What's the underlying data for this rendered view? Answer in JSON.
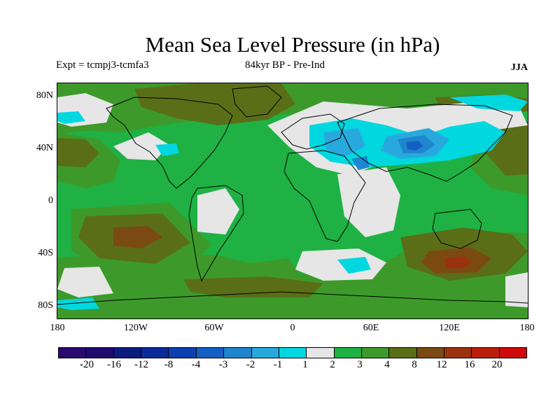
{
  "title": "Mean Sea Level Pressure (in hPa)",
  "experiment": "Expt = tcmpj3-tcmfa3",
  "period": "84kyr BP - Pre-Ind",
  "season": "JJA",
  "y_ticks": [
    "80N",
    "40N",
    "0",
    "40S",
    "80S"
  ],
  "x_ticks": [
    "180",
    "120W",
    "60W",
    "0",
    "60E",
    "120E",
    "180"
  ],
  "legend_labels": [
    "-20",
    "-16",
    "-12",
    "-8",
    "-4",
    "-3",
    "-2",
    "-1",
    "1",
    "2",
    "3",
    "4",
    "8",
    "12",
    "16",
    "20"
  ],
  "legend_colors": [
    "#1f0a6e",
    "#0d1a7e",
    "#0a2a9a",
    "#0c3fb0",
    "#1460c2",
    "#1e86cf",
    "#28a9dd",
    "#00d7df",
    "#e6e6e6",
    "#1fb144",
    "#3d9a2a",
    "#5a6e17",
    "#7a4a12",
    "#9a3210",
    "#b9200c",
    "#cf0a0a"
  ],
  "map_colors": {
    "base": "#1fb144",
    "low_1": "#00d7df",
    "low_2": "#28a9dd",
    "low_3": "#1e86cf",
    "low_4": "#1460c2",
    "near_zero": "#e6e6e6",
    "high_3": "#3d9a2a",
    "high_4": "#5a6e17",
    "high_8": "#7a4a12",
    "high_12": "#9a3210",
    "coast": "#000000"
  }
}
